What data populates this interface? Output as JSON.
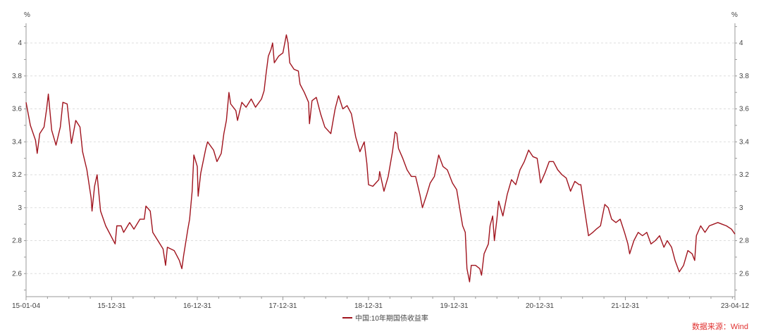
{
  "chart_data": {
    "type": "line",
    "title": "",
    "ylabel_left": "%",
    "ylabel_right": "%",
    "xlabel": "",
    "ylim": [
      2.46,
      4.12
    ],
    "yticks": [
      2.6,
      2.8,
      3,
      3.2,
      3.4,
      3.6,
      3.8,
      4
    ],
    "ytick_labels": [
      "2.6",
      "2.8",
      "3",
      "3.2",
      "3.4",
      "3.6",
      "3.8",
      "4"
    ],
    "xlim": [
      2015.0,
      2023.28
    ],
    "xticks": [
      2015.0,
      2016.0,
      2017.0,
      2018.0,
      2019.0,
      2020.0,
      2021.0,
      2022.0,
      2023.28
    ],
    "xtick_labels": [
      "15-01-04",
      "15-12-31",
      "16-12-31",
      "17-12-31",
      "18-12-31",
      "19-12-31",
      "20-12-31",
      "21-12-31",
      "23-04-12"
    ],
    "grid": "horizontal-dashed",
    "legend": "bottom-center",
    "source_note": "数据来源：Wind",
    "series": [
      {
        "name": "中国:10年期国债收益率",
        "color": "#a0141e",
        "points": [
          [
            2015.0,
            3.64
          ],
          [
            2015.05,
            3.5
          ],
          [
            2015.11,
            3.41
          ],
          [
            2015.13,
            3.33
          ],
          [
            2015.16,
            3.45
          ],
          [
            2015.21,
            3.49
          ],
          [
            2015.24,
            3.6
          ],
          [
            2015.26,
            3.69
          ],
          [
            2015.3,
            3.47
          ],
          [
            2015.35,
            3.38
          ],
          [
            2015.4,
            3.49
          ],
          [
            2015.43,
            3.64
          ],
          [
            2015.48,
            3.63
          ],
          [
            2015.53,
            3.39
          ],
          [
            2015.58,
            3.53
          ],
          [
            2015.63,
            3.49
          ],
          [
            2015.66,
            3.34
          ],
          [
            2015.71,
            3.23
          ],
          [
            2015.76,
            3.06
          ],
          [
            2015.77,
            2.98
          ],
          [
            2015.8,
            3.13
          ],
          [
            2015.83,
            3.2
          ],
          [
            2015.87,
            2.98
          ],
          [
            2015.93,
            2.89
          ],
          [
            2015.99,
            2.83
          ],
          [
            2016.04,
            2.78
          ],
          [
            2016.06,
            2.89
          ],
          [
            2016.11,
            2.89
          ],
          [
            2016.14,
            2.85
          ],
          [
            2016.21,
            2.91
          ],
          [
            2016.26,
            2.87
          ],
          [
            2016.33,
            2.93
          ],
          [
            2016.38,
            2.93
          ],
          [
            2016.4,
            3.01
          ],
          [
            2016.45,
            2.98
          ],
          [
            2016.48,
            2.85
          ],
          [
            2016.54,
            2.8
          ],
          [
            2016.6,
            2.75
          ],
          [
            2016.63,
            2.65
          ],
          [
            2016.65,
            2.76
          ],
          [
            2016.73,
            2.74
          ],
          [
            2016.79,
            2.68
          ],
          [
            2016.82,
            2.63
          ],
          [
            2016.84,
            2.71
          ],
          [
            2016.89,
            2.87
          ],
          [
            2016.91,
            2.93
          ],
          [
            2016.94,
            3.1
          ],
          [
            2016.96,
            3.32
          ],
          [
            2017.0,
            3.25
          ],
          [
            2017.01,
            3.07
          ],
          [
            2017.04,
            3.21
          ],
          [
            2017.1,
            3.36
          ],
          [
            2017.12,
            3.4
          ],
          [
            2017.19,
            3.35
          ],
          [
            2017.23,
            3.28
          ],
          [
            2017.28,
            3.33
          ],
          [
            2017.31,
            3.45
          ],
          [
            2017.34,
            3.53
          ],
          [
            2017.37,
            3.7
          ],
          [
            2017.39,
            3.63
          ],
          [
            2017.45,
            3.59
          ],
          [
            2017.47,
            3.53
          ],
          [
            2017.52,
            3.64
          ],
          [
            2017.57,
            3.61
          ],
          [
            2017.63,
            3.66
          ],
          [
            2017.68,
            3.61
          ],
          [
            2017.75,
            3.66
          ],
          [
            2017.78,
            3.71
          ],
          [
            2017.8,
            3.8
          ],
          [
            2017.83,
            3.92
          ],
          [
            2017.86,
            3.96
          ],
          [
            2017.88,
            4.0
          ],
          [
            2017.9,
            3.88
          ],
          [
            2017.95,
            3.92
          ],
          [
            2018.0,
            3.94
          ],
          [
            2018.04,
            4.05
          ],
          [
            2018.06,
            4.0
          ],
          [
            2018.08,
            3.88
          ],
          [
            2018.13,
            3.84
          ],
          [
            2018.18,
            3.83
          ],
          [
            2018.2,
            3.75
          ],
          [
            2018.25,
            3.7
          ],
          [
            2018.3,
            3.64
          ],
          [
            2018.31,
            3.51
          ],
          [
            2018.34,
            3.65
          ],
          [
            2018.39,
            3.67
          ],
          [
            2018.44,
            3.57
          ],
          [
            2018.49,
            3.49
          ],
          [
            2018.56,
            3.45
          ],
          [
            2018.61,
            3.6
          ],
          [
            2018.65,
            3.68
          ],
          [
            2018.7,
            3.6
          ],
          [
            2018.75,
            3.62
          ],
          [
            2018.8,
            3.57
          ],
          [
            2018.85,
            3.43
          ],
          [
            2018.9,
            3.34
          ],
          [
            2018.95,
            3.4
          ],
          [
            2018.98,
            3.27
          ],
          [
            2019.0,
            3.14
          ],
          [
            2019.05,
            3.13
          ],
          [
            2019.12,
            3.17
          ],
          [
            2019.13,
            3.22
          ],
          [
            2019.18,
            3.1
          ],
          [
            2019.23,
            3.19
          ],
          [
            2019.28,
            3.34
          ],
          [
            2019.31,
            3.46
          ],
          [
            2019.33,
            3.45
          ],
          [
            2019.35,
            3.36
          ],
          [
            2019.4,
            3.3
          ],
          [
            2019.45,
            3.23
          ],
          [
            2019.5,
            3.19
          ],
          [
            2019.55,
            3.19
          ],
          [
            2019.6,
            3.08
          ],
          [
            2019.63,
            3.0
          ],
          [
            2019.68,
            3.08
          ],
          [
            2019.72,
            3.15
          ],
          [
            2019.77,
            3.19
          ],
          [
            2019.82,
            3.32
          ],
          [
            2019.87,
            3.25
          ],
          [
            2019.92,
            3.23
          ],
          [
            2019.98,
            3.15
          ],
          [
            2020.03,
            3.11
          ],
          [
            2020.08,
            2.95
          ],
          [
            2020.1,
            2.89
          ],
          [
            2020.13,
            2.85
          ],
          [
            2020.15,
            2.63
          ],
          [
            2020.18,
            2.55
          ],
          [
            2020.2,
            2.65
          ],
          [
            2020.25,
            2.65
          ],
          [
            2020.3,
            2.63
          ],
          [
            2020.32,
            2.59
          ],
          [
            2020.35,
            2.72
          ],
          [
            2020.4,
            2.78
          ],
          [
            2020.42,
            2.89
          ],
          [
            2020.45,
            2.95
          ],
          [
            2020.47,
            2.8
          ],
          [
            2020.5,
            2.93
          ],
          [
            2020.52,
            3.04
          ],
          [
            2020.57,
            2.95
          ],
          [
            2020.62,
            3.08
          ],
          [
            2020.67,
            3.17
          ],
          [
            2020.72,
            3.14
          ],
          [
            2020.77,
            3.23
          ],
          [
            2020.82,
            3.28
          ],
          [
            2020.87,
            3.35
          ],
          [
            2020.92,
            3.31
          ],
          [
            2020.97,
            3.3
          ],
          [
            2020.99,
            3.23
          ],
          [
            2021.01,
            3.15
          ],
          [
            2021.06,
            3.21
          ],
          [
            2021.11,
            3.28
          ],
          [
            2021.16,
            3.28
          ],
          [
            2021.21,
            3.23
          ],
          [
            2021.26,
            3.2
          ],
          [
            2021.31,
            3.18
          ],
          [
            2021.36,
            3.1
          ],
          [
            2021.41,
            3.16
          ],
          [
            2021.46,
            3.14
          ],
          [
            2021.48,
            3.14
          ],
          [
            2021.52,
            3.0
          ],
          [
            2021.57,
            2.83
          ],
          [
            2021.62,
            2.85
          ],
          [
            2021.66,
            2.87
          ],
          [
            2021.71,
            2.89
          ],
          [
            2021.76,
            3.02
          ],
          [
            2021.8,
            3.0
          ],
          [
            2021.84,
            2.93
          ],
          [
            2021.89,
            2.91
          ],
          [
            2021.94,
            2.93
          ],
          [
            2021.99,
            2.85
          ],
          [
            2022.03,
            2.78
          ],
          [
            2022.05,
            2.72
          ],
          [
            2022.1,
            2.8
          ],
          [
            2022.15,
            2.85
          ],
          [
            2022.2,
            2.83
          ],
          [
            2022.25,
            2.85
          ],
          [
            2022.3,
            2.78
          ],
          [
            2022.35,
            2.8
          ],
          [
            2022.4,
            2.83
          ],
          [
            2022.45,
            2.76
          ],
          [
            2022.49,
            2.8
          ],
          [
            2022.54,
            2.76
          ],
          [
            2022.58,
            2.68
          ],
          [
            2022.63,
            2.61
          ],
          [
            2022.68,
            2.65
          ],
          [
            2022.73,
            2.74
          ],
          [
            2022.78,
            2.72
          ],
          [
            2022.81,
            2.68
          ],
          [
            2022.83,
            2.83
          ],
          [
            2022.88,
            2.89
          ],
          [
            2022.93,
            2.85
          ],
          [
            2022.98,
            2.89
          ],
          [
            2023.03,
            2.9
          ],
          [
            2023.08,
            2.91
          ],
          [
            2023.13,
            2.9
          ],
          [
            2023.18,
            2.89
          ],
          [
            2023.24,
            2.87
          ],
          [
            2023.28,
            2.84
          ]
        ]
      }
    ]
  }
}
